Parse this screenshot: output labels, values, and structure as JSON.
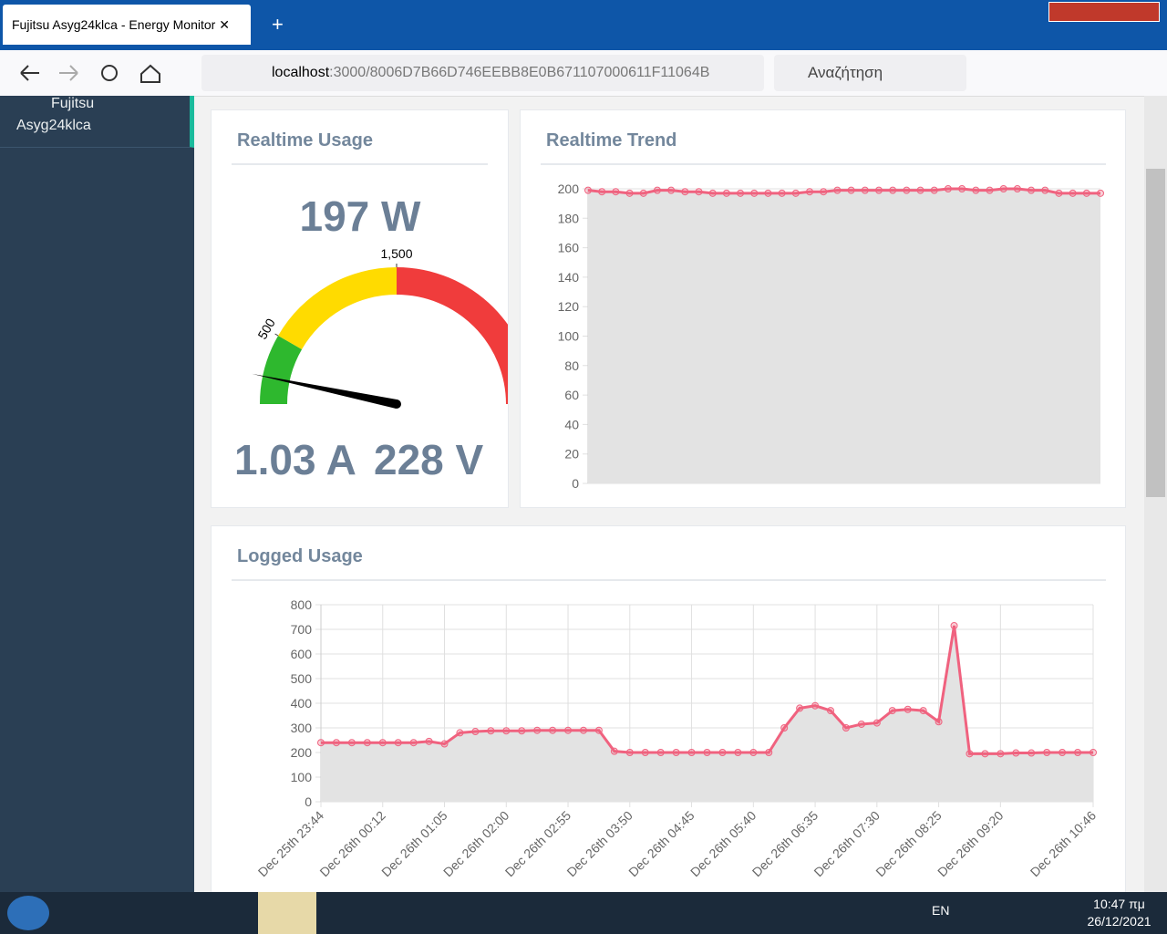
{
  "browser": {
    "tab_title": "Fujitsu Asyg24klca - Energy Monitor",
    "url_host": "localhost",
    "url_path": ":3000/8006D7B66D746EEBB8E0B671107000611F11064B",
    "search_placeholder": "Αναζήτηση"
  },
  "sidebar": {
    "device_name": "Fujitsu Asyg24klca"
  },
  "chart_data": [
    {
      "type": "gauge",
      "title": "Realtime Usage",
      "value": 197,
      "value_label": "197 W",
      "lim": [
        0,
        3000
      ],
      "bands": [
        {
          "from": 0,
          "to": 500,
          "color": "#2eb82e"
        },
        {
          "from": 500,
          "to": 1500,
          "color": "#ffdb00"
        },
        {
          "from": 1500,
          "to": 3000,
          "color": "#f03c3c"
        }
      ],
      "ticks": [
        500,
        {
          "value": 1500,
          "label": "1,500"
        }
      ],
      "current_label": "1.03 A",
      "voltage_label": "228 V"
    },
    {
      "type": "line",
      "title": "Realtime Trend",
      "color": "#f0627f",
      "fill": "#e3e3e3",
      "values": [
        199,
        198,
        198,
        197,
        197,
        199,
        199,
        198,
        198,
        197,
        197,
        197,
        197,
        197,
        197,
        197,
        198,
        198,
        199,
        199,
        199,
        199,
        199,
        199,
        199,
        199,
        200,
        200,
        199,
        199,
        200,
        200,
        199,
        199,
        197,
        197,
        197,
        197
      ],
      "ylim": [
        0,
        200
      ],
      "yticks": [
        0,
        20,
        40,
        60,
        80,
        100,
        120,
        140,
        160,
        180,
        200
      ],
      "grid": true
    },
    {
      "type": "line",
      "title": "Logged Usage",
      "color": "#f0627f",
      "fill": "#e3e3e3",
      "categories": [
        "Dec 25th 23:44",
        null,
        null,
        null,
        "Dec 26th 00:12",
        null,
        null,
        null,
        "Dec 26th 01:05",
        null,
        null,
        null,
        "Dec 26th 02:00",
        null,
        null,
        null,
        "Dec 26th 02:55",
        null,
        null,
        null,
        "Dec 26th 03:50",
        null,
        null,
        null,
        "Dec 26th 04:45",
        null,
        null,
        null,
        "Dec 26th 05:40",
        null,
        null,
        null,
        "Dec 26th 06:35",
        null,
        null,
        null,
        "Dec 26th 07:30",
        null,
        null,
        null,
        "Dec 26th 08:25",
        null,
        null,
        null,
        "Dec 26th 09:20",
        null,
        null,
        null,
        null,
        null,
        "Dec 26th 10:46"
      ],
      "values": [
        240,
        240,
        240,
        240,
        240,
        240,
        240,
        245,
        235,
        280,
        285,
        288,
        288,
        288,
        290,
        290,
        290,
        290,
        290,
        205,
        200,
        200,
        200,
        200,
        200,
        200,
        200,
        200,
        200,
        200,
        300,
        380,
        390,
        370,
        300,
        315,
        320,
        370,
        375,
        370,
        325,
        715,
        195,
        195,
        195,
        198,
        198,
        200,
        200,
        200,
        200
      ],
      "ylim": [
        0,
        800
      ],
      "yticks": [
        0,
        100,
        200,
        300,
        400,
        500,
        600,
        700,
        800
      ],
      "grid": true
    }
  ],
  "taskbar": {
    "language": "EN",
    "time": "10:47 πμ",
    "date": "26/12/2021"
  }
}
